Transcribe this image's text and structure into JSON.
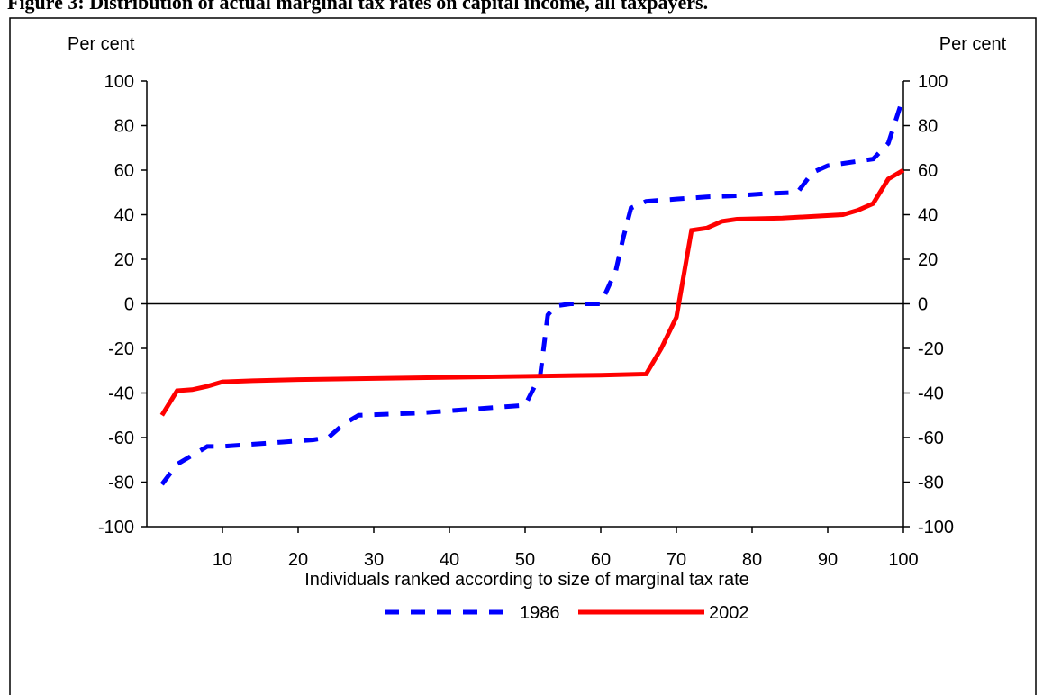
{
  "chart_data": {
    "type": "line",
    "title": "Figure 3: Distribution of actual marginal tax rates on capital income, all taxpayers.",
    "y_label": "Per cent",
    "y2_label": "Per cent",
    "x_label": "Individuals ranked according to size of marginal tax rate",
    "xlim": [
      0,
      100
    ],
    "xticks": [
      10,
      20,
      30,
      40,
      50,
      60,
      70,
      80,
      90,
      100
    ],
    "ylim": [
      -100,
      100
    ],
    "yticks": [
      -100,
      -80,
      -60,
      -40,
      -20,
      0,
      20,
      40,
      60,
      80,
      100
    ],
    "y2lim": [
      -100,
      100
    ],
    "y2ticks": [
      -100,
      -80,
      -60,
      -40,
      -20,
      0,
      20,
      40,
      60,
      80,
      100
    ],
    "series": [
      {
        "name": "1986",
        "color": "#0000ff",
        "dashed": true,
        "x": [
          2,
          4,
          6,
          8,
          10,
          14,
          18,
          22,
          24,
          26,
          28,
          32,
          36,
          40,
          44,
          48,
          50,
          52,
          53,
          54,
          56,
          58,
          60,
          62,
          63,
          64,
          66,
          70,
          74,
          78,
          82,
          86,
          88,
          90,
          94,
          96,
          98,
          100
        ],
        "values": [
          -81,
          -72,
          -68,
          -64,
          -64,
          -63,
          -62,
          -61,
          -60,
          -54,
          -50,
          -49.5,
          -49,
          -48,
          -47,
          -46,
          -45.5,
          -32,
          -5,
          -1,
          0,
          0,
          0,
          15,
          30,
          43,
          46,
          47,
          48,
          48.5,
          49.5,
          50,
          59,
          62,
          64,
          65,
          72,
          93
        ]
      },
      {
        "name": "2002",
        "color": "#ff0000",
        "dashed": false,
        "x": [
          2,
          4,
          6,
          8,
          10,
          14,
          20,
          30,
          40,
          50,
          60,
          66,
          68,
          70,
          72,
          74,
          76,
          78,
          84,
          92,
          94,
          96,
          98,
          100
        ],
        "values": [
          -50,
          -39,
          -38.5,
          -37,
          -35,
          -34.5,
          -34,
          -33.5,
          -33,
          -32.5,
          -32,
          -31.5,
          -20,
          -6,
          33,
          34,
          37,
          38,
          38.5,
          40,
          42,
          45,
          56,
          60
        ]
      }
    ]
  }
}
